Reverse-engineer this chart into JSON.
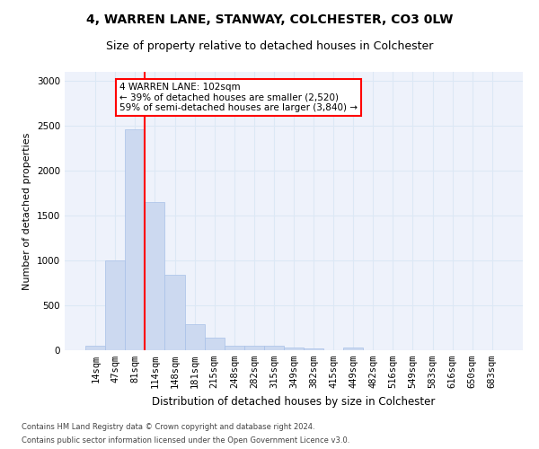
{
  "title1": "4, WARREN LANE, STANWAY, COLCHESTER, CO3 0LW",
  "title2": "Size of property relative to detached houses in Colchester",
  "xlabel": "Distribution of detached houses by size in Colchester",
  "ylabel": "Number of detached properties",
  "categories": [
    "14sqm",
    "47sqm",
    "81sqm",
    "114sqm",
    "148sqm",
    "181sqm",
    "215sqm",
    "248sqm",
    "282sqm",
    "315sqm",
    "349sqm",
    "382sqm",
    "415sqm",
    "449sqm",
    "482sqm",
    "516sqm",
    "549sqm",
    "583sqm",
    "616sqm",
    "650sqm",
    "683sqm"
  ],
  "values": [
    55,
    1000,
    2460,
    1650,
    840,
    295,
    140,
    55,
    50,
    55,
    30,
    20,
    0,
    30,
    0,
    0,
    0,
    0,
    0,
    0,
    0
  ],
  "bar_color": "#ccd9f0",
  "bar_edgecolor": "#a8c0e8",
  "vline_color": "red",
  "vline_index": 2.5,
  "annotation_text": "4 WARREN LANE: 102sqm\n← 39% of detached houses are smaller (2,520)\n59% of semi-detached houses are larger (3,840) →",
  "annotation_box_edgecolor": "red",
  "ylim": [
    0,
    3100
  ],
  "yticks": [
    0,
    500,
    1000,
    1500,
    2000,
    2500,
    3000
  ],
  "grid_color": "#dce8f5",
  "background_color": "#eef2fb",
  "footer1": "Contains HM Land Registry data © Crown copyright and database right 2024.",
  "footer2": "Contains public sector information licensed under the Open Government Licence v3.0.",
  "title1_fontsize": 10,
  "title2_fontsize": 9,
  "xlabel_fontsize": 8.5,
  "ylabel_fontsize": 8,
  "tick_fontsize": 7.5,
  "annotation_fontsize": 7.5,
  "footer_fontsize": 6
}
